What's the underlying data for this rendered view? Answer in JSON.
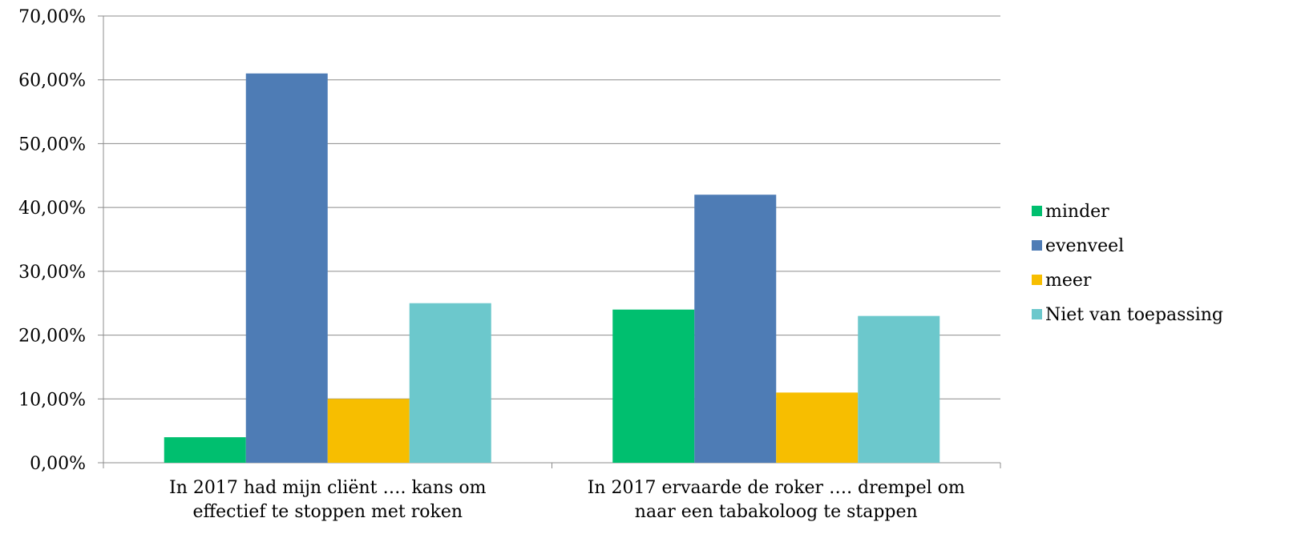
{
  "chart_data": {
    "type": "bar",
    "categories": [
      [
        "In 2017 had mijn cliënt …. kans om",
        "effectief te stoppen met roken"
      ],
      [
        "In 2017 ervaarde de roker …. drempel om",
        "naar een tabakoloog te stappen"
      ]
    ],
    "series": [
      {
        "name": "minder",
        "color": "#00BF6F",
        "values": [
          4,
          24
        ]
      },
      {
        "name": "evenveel",
        "color": "#4E7CB5",
        "values": [
          61,
          42
        ]
      },
      {
        "name": "meer",
        "color": "#F7BE00",
        "values": [
          10,
          11
        ]
      },
      {
        "name": "Niet van toepassing",
        "color": "#6CC8CC",
        "values": [
          25,
          23
        ]
      }
    ],
    "ylim": [
      0,
      70
    ],
    "yticks": [
      "0,00%",
      "10,00%",
      "20,00%",
      "30,00%",
      "40,00%",
      "50,00%",
      "60,00%",
      "70,00%"
    ],
    "grid": true,
    "legend": "right",
    "title": "",
    "xlabel": "",
    "ylabel": ""
  }
}
